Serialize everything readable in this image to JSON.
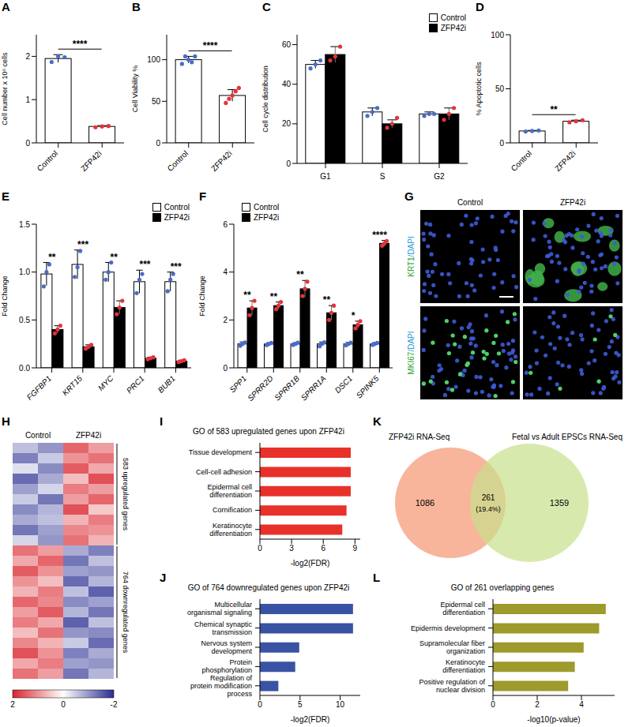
{
  "chart_data": [
    {
      "panel": "A",
      "type": "bar",
      "ylabel": "Cell number x 10⁶ cells",
      "categories": [
        "Control",
        "ZFP42i"
      ],
      "values": [
        1.95,
        0.38
      ],
      "errors": [
        0.09,
        0.02
      ],
      "points": [
        [
          1.87,
          2.0,
          1.98
        ],
        [
          0.36,
          0.38,
          0.39
        ]
      ],
      "colors": [
        "#ffffff",
        "#ffffff"
      ],
      "ylim": [
        0,
        2.5
      ],
      "yticks": [
        0,
        1,
        2
      ],
      "significance": "****"
    },
    {
      "panel": "B",
      "type": "bar",
      "ylabel": "Cell Viability %",
      "categories": [
        "Control",
        "ZFP42i"
      ],
      "values": [
        100,
        57
      ],
      "errors": [
        4,
        7
      ],
      "points": [
        [
          95,
          104,
          100,
          97,
          104
        ],
        [
          48,
          53,
          57,
          62,
          66
        ]
      ],
      "colors": [
        "#ffffff",
        "#ffffff"
      ],
      "ylim": [
        0,
        130
      ],
      "yticks": [
        0,
        50,
        100
      ],
      "significance": "****"
    },
    {
      "panel": "C",
      "type": "bar",
      "ylabel": "Cell cycle distribution",
      "categories": [
        "G1",
        "S",
        "G2"
      ],
      "series": [
        {
          "name": "Control",
          "color": "#ffffff",
          "values": [
            50,
            26,
            25
          ],
          "errors": [
            2,
            2,
            1
          ],
          "points": [
            [
              48,
              50,
              52
            ],
            [
              24,
              26,
              28
            ],
            [
              24,
              25,
              25
            ]
          ]
        },
        {
          "name": "ZFP42i",
          "color": "#000000",
          "values": [
            55,
            20,
            25
          ],
          "errors": [
            4,
            2,
            3
          ],
          "points": [
            [
              52,
              54,
              59
            ],
            [
              18,
              20,
              23
            ],
            [
              22,
              25,
              28
            ]
          ]
        }
      ],
      "ylim": [
        0,
        65
      ],
      "yticks": [
        0,
        20,
        40,
        60
      ],
      "legend": "top-right"
    },
    {
      "panel": "D",
      "type": "bar",
      "ylabel": "% Apoptotic cells",
      "categories": [
        "Control",
        "ZFP42i"
      ],
      "values": [
        11,
        20
      ],
      "errors": [
        0.5,
        1
      ],
      "points": [
        [
          10.5,
          11,
          11.5
        ],
        [
          19,
          20,
          21
        ]
      ],
      "colors": [
        "#ffffff",
        "#ffffff"
      ],
      "ylim": [
        0,
        100
      ],
      "yticks": [
        0,
        50,
        100
      ],
      "significance": "**"
    },
    {
      "panel": "E",
      "type": "bar",
      "ylabel": "Fold Change",
      "categories": [
        "FGFBP1",
        "KRT15",
        "MYC",
        "PRC1",
        "BUB1"
      ],
      "series": [
        {
          "name": "Control",
          "color": "#ffffff",
          "values": [
            0.98,
            1.08,
            1.0,
            0.9,
            0.9
          ],
          "errors": [
            0.12,
            0.15,
            0.1,
            0.12,
            0.1
          ],
          "points": [
            [
              0.85,
              1.0,
              1.08
            ],
            [
              0.95,
              1.05,
              1.22
            ],
            [
              0.92,
              1.0,
              1.1
            ],
            [
              0.78,
              0.92,
              0.98
            ],
            [
              0.8,
              0.92,
              0.98
            ]
          ]
        },
        {
          "name": "ZFP42i",
          "color": "#000000",
          "values": [
            0.4,
            0.22,
            0.63,
            0.1,
            0.07
          ],
          "errors": [
            0.04,
            0.02,
            0.07,
            0.01,
            0.01
          ],
          "points": [
            [
              0.36,
              0.4,
              0.44
            ],
            [
              0.2,
              0.22,
              0.24
            ],
            [
              0.56,
              0.63,
              0.7
            ],
            [
              0.09,
              0.1,
              0.11
            ],
            [
              0.06,
              0.07,
              0.08
            ]
          ]
        }
      ],
      "significance": [
        "**",
        "***",
        "**",
        "***",
        "***"
      ],
      "ylim": [
        0,
        1.5
      ],
      "yticks": [
        {
          "value": 0,
          "label": "0.0"
        },
        0.5,
        {
          "value": 1,
          "label": "1.0"
        },
        1.5
      ],
      "legend": "top-right"
    },
    {
      "panel": "F",
      "type": "bar",
      "ylabel": "Fold Change",
      "categories": [
        "SPP1",
        "SPRR2D",
        "SPRR1B",
        "SPRR1A",
        "DSC1",
        "SPINK5"
      ],
      "series": [
        {
          "name": "Control",
          "color": "#ffffff",
          "values": [
            1,
            1,
            1,
            1,
            1,
            1
          ],
          "errors": [
            0.08,
            0.05,
            0.05,
            0.08,
            0.06,
            0.05
          ],
          "points": [
            [
              0.92,
              1.0,
              1.06
            ],
            [
              0.95,
              1.0,
              1.04
            ],
            [
              0.96,
              1.0,
              1.05
            ],
            [
              0.9,
              1.0,
              1.07
            ],
            [
              0.94,
              1.0,
              1.05
            ],
            [
              0.96,
              1.0,
              1.04
            ]
          ]
        },
        {
          "name": "ZFP42i",
          "color": "#000000",
          "values": [
            2.5,
            2.6,
            3.3,
            2.3,
            1.8,
            5.2
          ],
          "errors": [
            0.3,
            0.15,
            0.35,
            0.3,
            0.15,
            0.12
          ],
          "points": [
            [
              2.2,
              2.5,
              2.8
            ],
            [
              2.45,
              2.6,
              2.75
            ],
            [
              3.0,
              3.3,
              3.6
            ],
            [
              2.0,
              2.3,
              2.6
            ],
            [
              1.65,
              1.8,
              1.95
            ],
            [
              5.1,
              5.2,
              5.3
            ]
          ]
        }
      ],
      "significance": [
        "**",
        "**",
        "**",
        "**",
        "*",
        "****"
      ],
      "ylim": [
        0,
        6
      ],
      "yticks": [
        0,
        2,
        4,
        6
      ],
      "legend": "top-left"
    },
    {
      "panel": "H",
      "type": "heatmap",
      "column_groups": [
        "Control",
        "ZFP42i"
      ],
      "groups": [
        {
          "label": "583 upregulated genes",
          "cells": [
            [
              -0.6,
              -1.0,
              1.4,
              0.9
            ],
            [
              -1.2,
              -0.5,
              1.0,
              1.3
            ],
            [
              -0.3,
              -1.1,
              1.5,
              0.8
            ],
            [
              -1.4,
              -0.8,
              0.6,
              1.6
            ],
            [
              -0.9,
              -0.4,
              1.2,
              0.9
            ],
            [
              -0.5,
              -1.3,
              0.9,
              1.4
            ],
            [
              -1.1,
              -0.7,
              1.6,
              0.5
            ],
            [
              -0.8,
              -0.6,
              0.7,
              1.2
            ],
            [
              -1.3,
              -0.9,
              1.1,
              1.0
            ],
            [
              -0.4,
              -1.0,
              1.3,
              0.7
            ]
          ]
        },
        {
          "label": "764 downregulated genes",
          "cells": [
            [
              1.3,
              0.9,
              -0.8,
              -1.2
            ],
            [
              0.8,
              1.4,
              -1.3,
              -0.6
            ],
            [
              1.5,
              1.0,
              -0.9,
              -1.0
            ],
            [
              1.0,
              0.6,
              -1.4,
              -0.7
            ],
            [
              0.7,
              1.2,
              -0.6,
              -1.5
            ],
            [
              1.4,
              1.1,
              -1.1,
              -0.9
            ],
            [
              0.9,
              1.5,
              -0.7,
              -1.3
            ],
            [
              1.2,
              0.8,
              -1.5,
              -0.6
            ],
            [
              0.6,
              1.3,
              -1.0,
              -1.1
            ],
            [
              1.1,
              0.7,
              -0.5,
              -1.4
            ],
            [
              1.6,
              1.0,
              -1.2,
              -0.8
            ],
            [
              0.8,
              1.2,
              -0.9,
              -1.0
            ],
            [
              1.3,
              0.9,
              -1.3,
              -0.7
            ]
          ]
        }
      ],
      "colorbar": {
        "range": [
          -2,
          2
        ],
        "ticks": [
          2,
          0,
          -2
        ]
      }
    },
    {
      "panel": "I",
      "type": "bar",
      "orientation": "horizontal",
      "title": "GO of 583 upregulated genes upon ZFP42i",
      "xlabel": "-log2(FDR)",
      "categories": [
        "Tissue development",
        "Cell-cell adhesion",
        "Epidermal cell differentiation",
        "Cornification",
        "Keratinocyte differentiation"
      ],
      "values": [
        8.6,
        8.6,
        8.6,
        8.2,
        7.8
      ],
      "color": "#e8312a",
      "xlim": [
        0,
        9.5
      ],
      "xticks": [
        0,
        3,
        6,
        9
      ]
    },
    {
      "panel": "J",
      "type": "bar",
      "orientation": "horizontal",
      "title": "GO of 764 downregulated genes upon ZFP42i",
      "xlabel": "-log2(FDR)",
      "categories": [
        "Multicellular organismal signaling",
        "Chemical synaptic transmission",
        "Nervous system development",
        "Protein phosphorylation",
        "Regulation of protein modification process"
      ],
      "values": [
        11.6,
        11.6,
        4.9,
        4.4,
        2.3
      ],
      "color": "#3953a4",
      "xlim": [
        0,
        12.5
      ],
      "xticks": [
        0,
        5,
        10
      ]
    },
    {
      "panel": "K",
      "type": "venn",
      "sets": [
        {
          "label": "ZFP42i RNA-Seq",
          "value": 1086,
          "color": "#f7a88b"
        },
        {
          "label": "Fetal vs Adult EPSCs RNA-Seq",
          "value": 1359,
          "color": "#c8e08c"
        }
      ],
      "overlap": {
        "value": 261,
        "percent": {
          "value": 19.4,
          "label": "(19.4%)"
        }
      }
    },
    {
      "panel": "L",
      "type": "bar",
      "orientation": "horizontal",
      "title": "GO of 261 overlapping genes",
      "xlabel": "-log10(p-value)",
      "categories": [
        "Epidermal cell differentiation",
        "Epidermis development",
        "Supramolecular fiber organization",
        "Keratinocyte differentiation",
        "Positive regulation of nuclear division"
      ],
      "values": [
        5.1,
        4.8,
        4.1,
        3.7,
        3.4
      ],
      "color": "#9e9a2c",
      "xlim": [
        0,
        5.5
      ],
      "xticks": [
        0,
        2,
        4
      ]
    }
  ],
  "image_panel": {
    "panel": "G",
    "columns": [
      "Control",
      "ZFP42i"
    ],
    "rows": [
      {
        "stain": "KRT1",
        "counterstain": "/DAPI"
      },
      {
        "stain": "MKI67",
        "counterstain": "/DAPI"
      }
    ]
  }
}
